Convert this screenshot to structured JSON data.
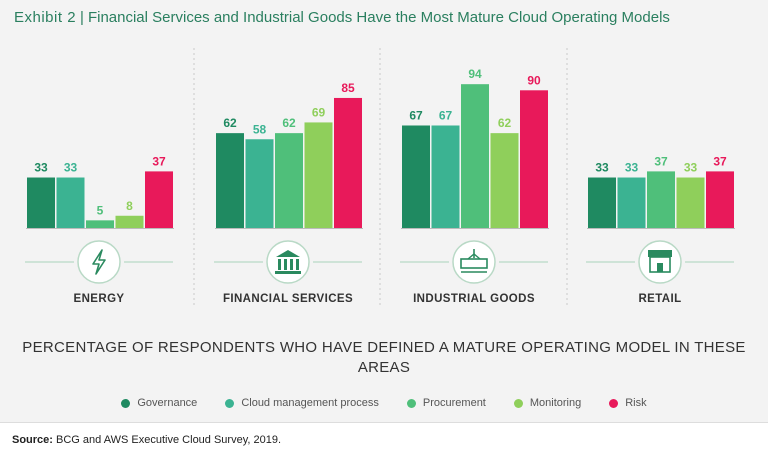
{
  "header": {
    "exhibit": "Exhibit 2",
    "separator": "|",
    "title": "Financial Services and Industrial Goods Have the Most Mature Cloud Operating Models"
  },
  "chart_data": {
    "type": "bar",
    "title": "Exhibit 2 | Financial Services and Industrial Goods Have the Most Mature Cloud Operating Models",
    "subtitle": "PERCENTAGE OF RESPONDENTS WHO HAVE DEFINED A MATURE OPERATING MODEL IN THESE AREAS",
    "categories": [
      "ENERGY",
      "FINANCIAL SERVICES",
      "INDUSTRIAL GOODS",
      "RETAIL"
    ],
    "category_icons": [
      "lightning-icon",
      "bank-icon",
      "crane-icon",
      "storefront-icon"
    ],
    "series": [
      {
        "name": "Governance",
        "color": "#1f8a61",
        "values": [
          33,
          62,
          67,
          33
        ]
      },
      {
        "name": "Cloud management process",
        "color": "#3bb392",
        "values": [
          33,
          58,
          67,
          33
        ]
      },
      {
        "name": "Procurement",
        "color": "#4fbf7a",
        "values": [
          5,
          62,
          94,
          37
        ]
      },
      {
        "name": "Monitoring",
        "color": "#8fcf5b",
        "values": [
          8,
          69,
          62,
          33
        ]
      },
      {
        "name": "Risk",
        "color": "#e8195a",
        "values": [
          37,
          85,
          90,
          37
        ]
      }
    ],
    "ylim": [
      0,
      100
    ],
    "grid": false,
    "legend": "bottom",
    "xlabel": "",
    "ylabel": ""
  },
  "legend_title": "PERCENTAGE OF RESPONDENTS WHO HAVE DEFINED A MATURE OPERATING MODEL IN THESE AREAS",
  "source": {
    "label": "Source:",
    "text": "BCG and AWS Executive Cloud Survey, 2019."
  }
}
